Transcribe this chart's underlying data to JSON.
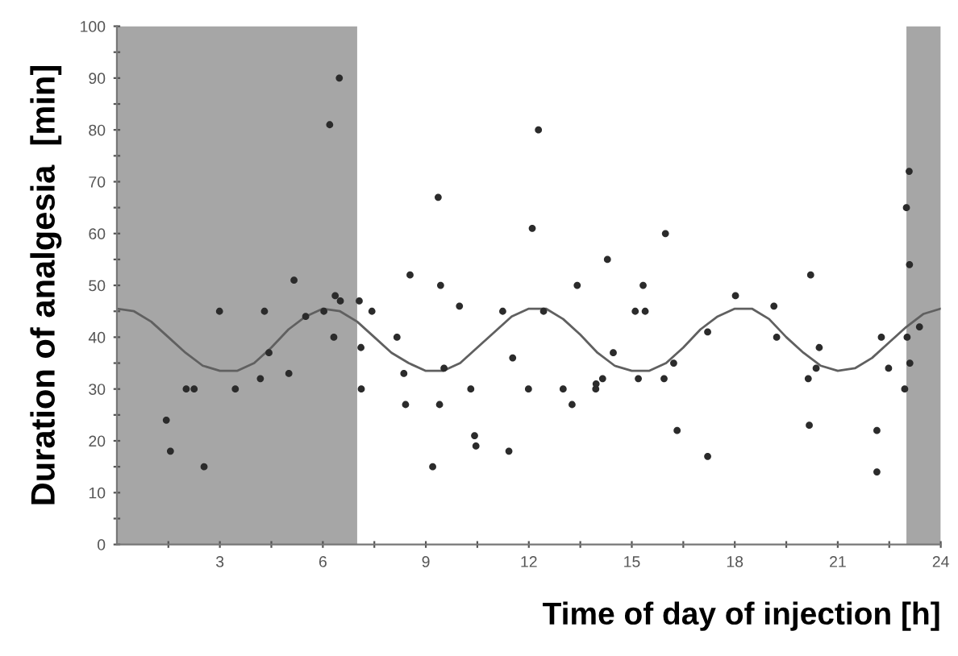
{
  "chart_data": {
    "type": "scatter",
    "xlabel": "Time of day of injection [h]",
    "ylabel": "Duration of analgesia  [min]",
    "xlim": [
      0,
      24
    ],
    "ylim": [
      0,
      100
    ],
    "xticks": [
      {
        "value": 1.5,
        "label": null
      },
      3,
      {
        "value": 4.5,
        "label": null
      },
      6,
      {
        "value": 7.5,
        "label": null
      },
      9,
      {
        "value": 10.5,
        "label": null
      },
      12,
      {
        "value": 13.5,
        "label": null
      },
      15,
      {
        "value": 16.5,
        "label": null
      },
      18,
      {
        "value": 19.5,
        "label": null
      },
      21,
      {
        "value": 22.5,
        "label": null
      },
      24
    ],
    "yticks": [
      0,
      {
        "value": 5,
        "label": null
      },
      10,
      {
        "value": 15,
        "label": null
      },
      20,
      {
        "value": 25,
        "label": null
      },
      30,
      {
        "value": 35,
        "label": null
      },
      40,
      {
        "value": 45,
        "label": null
      },
      50,
      {
        "value": 55,
        "label": null
      },
      60,
      {
        "value": 65,
        "label": null
      },
      70,
      {
        "value": 75,
        "label": null
      },
      80,
      {
        "value": 85,
        "label": null
      },
      90,
      {
        "value": 95,
        "label": null
      },
      100
    ],
    "grid": false,
    "marker": "circle",
    "bands": [
      {
        "axis": "x",
        "from": 0,
        "to": 7,
        "color": "#a6a6a6"
      },
      {
        "axis": "x",
        "from": 23,
        "to": 24,
        "color": "#a6a6a6"
      }
    ],
    "series": [
      {
        "color": "#2b2b2b",
        "x": [
          1.44,
          1.56,
          2.02,
          2.25,
          2.54,
          2.99,
          3.45,
          4.18,
          4.3,
          4.43,
          5.01,
          5.16,
          5.5,
          6.03,
          6.2,
          6.32,
          6.36,
          6.48,
          6.51,
          7.06,
          7.11,
          7.12,
          7.43,
          8.16,
          8.36,
          8.41,
          8.54,
          9.2,
          9.36,
          9.4,
          9.43,
          9.53,
          9.98,
          10.31,
          10.42,
          10.46,
          11.24,
          11.42,
          11.53,
          11.99,
          12.1,
          12.28,
          12.43,
          13.0,
          13.26,
          13.41,
          13.95,
          13.96,
          14.15,
          14.29,
          14.46,
          15.1,
          15.19,
          15.33,
          15.39,
          15.94,
          15.98,
          16.22,
          16.32,
          17.21,
          17.21,
          18.02,
          19.14,
          19.22,
          20.14,
          20.17,
          20.21,
          20.37,
          20.46,
          22.14,
          22.14,
          22.27,
          22.48,
          22.95,
          23.0,
          23.02,
          23.08,
          23.09,
          23.1,
          23.38
        ],
        "values": [
          24,
          18,
          30,
          30,
          15,
          45,
          30,
          32,
          45,
          37,
          33,
          51,
          44,
          45,
          81,
          40,
          48,
          90,
          47,
          47,
          38,
          30,
          45,
          40,
          33,
          27,
          52,
          15,
          67,
          27,
          50,
          34,
          46,
          30,
          21,
          19,
          45,
          18,
          36,
          30,
          61,
          80,
          45,
          30,
          27,
          50,
          30,
          31,
          32,
          55,
          37,
          45,
          32,
          50,
          45,
          32,
          60,
          35,
          22,
          41,
          17,
          48,
          46,
          40,
          32,
          23,
          52,
          34,
          38,
          22,
          14,
          40,
          34,
          30,
          65,
          40,
          72,
          54,
          35,
          42
        ]
      },
      {
        "type": "line",
        "color": "#606060",
        "marker": "none",
        "line_style": "solid",
        "x": [
          0,
          0.5,
          1,
          1.5,
          2,
          2.5,
          3,
          3.5,
          4,
          4.5,
          5,
          5.5,
          6,
          6.5,
          7,
          7.5,
          8,
          8.5,
          9,
          9.5,
          10,
          10.5,
          11,
          11.5,
          12,
          12.5,
          13,
          13.5,
          14,
          14.5,
          15,
          15.5,
          16,
          16.5,
          17,
          17.5,
          18,
          18.5,
          19,
          19.5,
          20,
          20.5,
          21,
          21.5,
          22,
          22.5,
          23,
          23.5,
          24
        ],
        "values": [
          45.5,
          45,
          43,
          40,
          37,
          34.5,
          33.5,
          33.5,
          35,
          38,
          41.5,
          44,
          45.5,
          45,
          43,
          40,
          37,
          35,
          33.5,
          33.5,
          35,
          38,
          41,
          44,
          45.5,
          45.5,
          43.5,
          40.5,
          37,
          34.5,
          33.5,
          33.5,
          35,
          38,
          41.5,
          44,
          45.5,
          45.5,
          43.5,
          40,
          37,
          34.5,
          33.5,
          34,
          36,
          39,
          42,
          44.5,
          45.5
        ]
      }
    ]
  }
}
